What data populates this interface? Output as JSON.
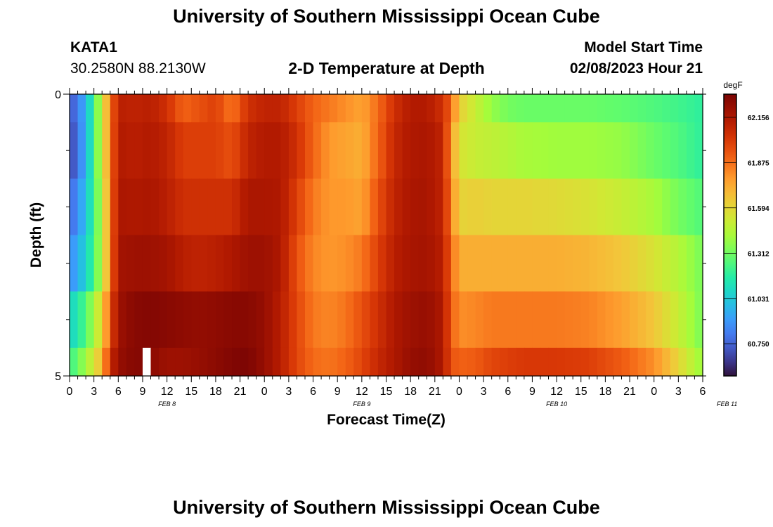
{
  "header": {
    "title": "University of Southern Mississippi Ocean Cube",
    "station": "KATA1",
    "coords": "30.2580N  88.2130W",
    "subtitle": "2-D Temperature at Depth",
    "model_label": "Model Start Time",
    "model_time": "02/08/2023 Hour 21"
  },
  "footer": {
    "title": "University of Southern Mississippi Ocean Cube"
  },
  "chart_data": {
    "type": "heatmap",
    "title": "2-D Temperature at Depth",
    "xlabel": "Forecast Time(Z)",
    "ylabel": "Depth (ft)",
    "unit": "degF",
    "ylim": [
      0,
      5
    ],
    "y_tick_labels": [
      "0",
      "5"
    ],
    "x_tick_labels": [
      "0",
      "3",
      "6",
      "9",
      "12",
      "15",
      "18",
      "21",
      "0",
      "3",
      "6",
      "9",
      "12",
      "15",
      "18",
      "21",
      "0",
      "3",
      "6",
      "9",
      "12",
      "15",
      "18",
      "21",
      "0",
      "3",
      "6"
    ],
    "date_labels": [
      {
        "label": "FEB 8",
        "hour": 12
      },
      {
        "label": "FEB 9",
        "hour": 36
      },
      {
        "label": "FEB 10",
        "hour": 60
      },
      {
        "label": "FEB 11",
        "hour": 81
      }
    ],
    "hours_total": 78,
    "colorbar": {
      "min": 60.55,
      "max": 62.3,
      "tick_labels": [
        "62.156",
        "61.875",
        "61.594",
        "61.312",
        "61.031",
        "60.750"
      ],
      "tick_values": [
        62.156,
        61.875,
        61.594,
        61.312,
        61.031,
        60.75
      ]
    },
    "series": [
      {
        "name": "Depth 0.0 ft",
        "x": [
          0,
          2,
          4,
          5,
          6,
          8,
          10,
          12,
          14,
          16,
          18,
          20,
          22,
          24,
          26,
          28,
          30,
          32,
          34,
          36,
          38,
          40,
          42,
          44,
          46,
          47,
          48,
          50,
          52,
          54,
          56,
          60,
          64,
          68,
          72,
          75,
          78
        ],
        "values": [
          60.7,
          60.95,
          61.5,
          61.85,
          62.12,
          62.1,
          62.12,
          62.05,
          61.9,
          61.95,
          62.0,
          61.85,
          62.05,
          62.1,
          62.1,
          62.0,
          61.9,
          61.85,
          61.8,
          61.75,
          61.88,
          62.05,
          62.14,
          62.14,
          62.05,
          61.9,
          61.62,
          61.5,
          61.38,
          61.32,
          61.3,
          61.3,
          61.3,
          61.28,
          61.25,
          61.22,
          61.18
        ]
      },
      {
        "name": "Depth 1.0 ft",
        "x": [
          0,
          2,
          4,
          5,
          6,
          8,
          10,
          12,
          14,
          16,
          18,
          20,
          22,
          24,
          26,
          28,
          30,
          32,
          34,
          36,
          38,
          40,
          42,
          44,
          46,
          47,
          48,
          50,
          52,
          54,
          56,
          60,
          64,
          68,
          72,
          75,
          78
        ],
        "values": [
          60.65,
          60.95,
          61.5,
          61.85,
          62.14,
          62.12,
          62.14,
          62.1,
          62.0,
          62.0,
          62.0,
          61.95,
          62.1,
          62.14,
          62.14,
          62.05,
          61.9,
          61.78,
          61.75,
          61.72,
          61.9,
          62.08,
          62.15,
          62.16,
          62.1,
          61.8,
          61.55,
          61.5,
          61.48,
          61.45,
          61.42,
          61.4,
          61.4,
          61.38,
          61.3,
          61.25,
          61.18
        ]
      },
      {
        "name": "Depth 2.0 ft",
        "x": [
          0,
          2,
          4,
          5,
          6,
          8,
          10,
          12,
          14,
          16,
          18,
          20,
          22,
          24,
          26,
          28,
          30,
          32,
          34,
          36,
          38,
          40,
          42,
          44,
          46,
          47,
          48,
          50,
          52,
          54,
          56,
          60,
          64,
          68,
          72,
          75,
          78
        ],
        "values": [
          60.75,
          61.0,
          61.45,
          61.85,
          62.16,
          62.15,
          62.16,
          62.12,
          62.05,
          62.05,
          62.05,
          62.05,
          62.16,
          62.16,
          62.15,
          62.0,
          61.85,
          61.78,
          61.78,
          61.75,
          61.95,
          62.1,
          62.16,
          62.17,
          62.1,
          61.85,
          61.6,
          61.62,
          61.6,
          61.6,
          61.6,
          61.58,
          61.55,
          61.5,
          61.42,
          61.32,
          61.25
        ]
      },
      {
        "name": "Depth 3.0 ft",
        "x": [
          0,
          2,
          4,
          5,
          6,
          8,
          10,
          12,
          14,
          16,
          18,
          20,
          22,
          24,
          26,
          28,
          30,
          32,
          34,
          36,
          38,
          40,
          42,
          44,
          46,
          47,
          48,
          50,
          52,
          54,
          56,
          60,
          64,
          68,
          72,
          75,
          78
        ],
        "values": [
          60.85,
          61.05,
          61.45,
          61.85,
          62.18,
          62.2,
          62.2,
          62.18,
          62.12,
          62.1,
          62.12,
          62.15,
          62.2,
          62.2,
          62.15,
          61.95,
          61.82,
          61.78,
          61.8,
          61.85,
          62.0,
          62.12,
          62.17,
          62.18,
          62.12,
          61.9,
          61.72,
          61.72,
          61.72,
          61.72,
          61.72,
          61.72,
          61.7,
          61.65,
          61.55,
          61.45,
          61.32
        ]
      },
      {
        "name": "Depth 4.0 ft",
        "x": [
          0,
          2,
          4,
          5,
          6,
          8,
          10,
          12,
          14,
          16,
          18,
          20,
          22,
          24,
          26,
          28,
          30,
          32,
          34,
          36,
          38,
          40,
          42,
          44,
          46,
          47,
          48,
          50,
          52,
          54,
          56,
          60,
          64,
          68,
          72,
          75,
          78
        ],
        "values": [
          61.05,
          61.25,
          61.6,
          61.95,
          62.2,
          62.26,
          62.27,
          62.26,
          62.24,
          62.23,
          62.24,
          62.26,
          62.26,
          62.22,
          62.12,
          61.98,
          61.85,
          61.82,
          61.86,
          61.95,
          62.05,
          62.15,
          62.2,
          62.22,
          62.15,
          61.92,
          61.8,
          61.82,
          61.85,
          61.85,
          61.85,
          61.85,
          61.83,
          61.76,
          61.65,
          61.5,
          61.32
        ]
      },
      {
        "name": "Depth 5.0 ft",
        "x": [
          0,
          2,
          4,
          5,
          6,
          8,
          10,
          12,
          14,
          16,
          18,
          20,
          22,
          24,
          26,
          28,
          30,
          32,
          34,
          36,
          38,
          40,
          42,
          44,
          46,
          47,
          48,
          50,
          52,
          54,
          56,
          60,
          64,
          68,
          72,
          75,
          78
        ],
        "values": [
          61.2,
          61.4,
          61.7,
          62.05,
          62.22,
          62.27,
          62.25,
          62.2,
          62.2,
          62.22,
          62.25,
          62.28,
          62.29,
          62.22,
          62.12,
          61.98,
          61.88,
          61.86,
          61.9,
          61.98,
          62.08,
          62.15,
          62.22,
          62.24,
          62.15,
          61.95,
          61.9,
          61.92,
          61.98,
          62.0,
          62.02,
          62.02,
          62.0,
          61.92,
          61.8,
          61.6,
          61.38
        ]
      }
    ],
    "missing_cells": [
      {
        "depth_row": 5,
        "hour": 9
      }
    ]
  }
}
